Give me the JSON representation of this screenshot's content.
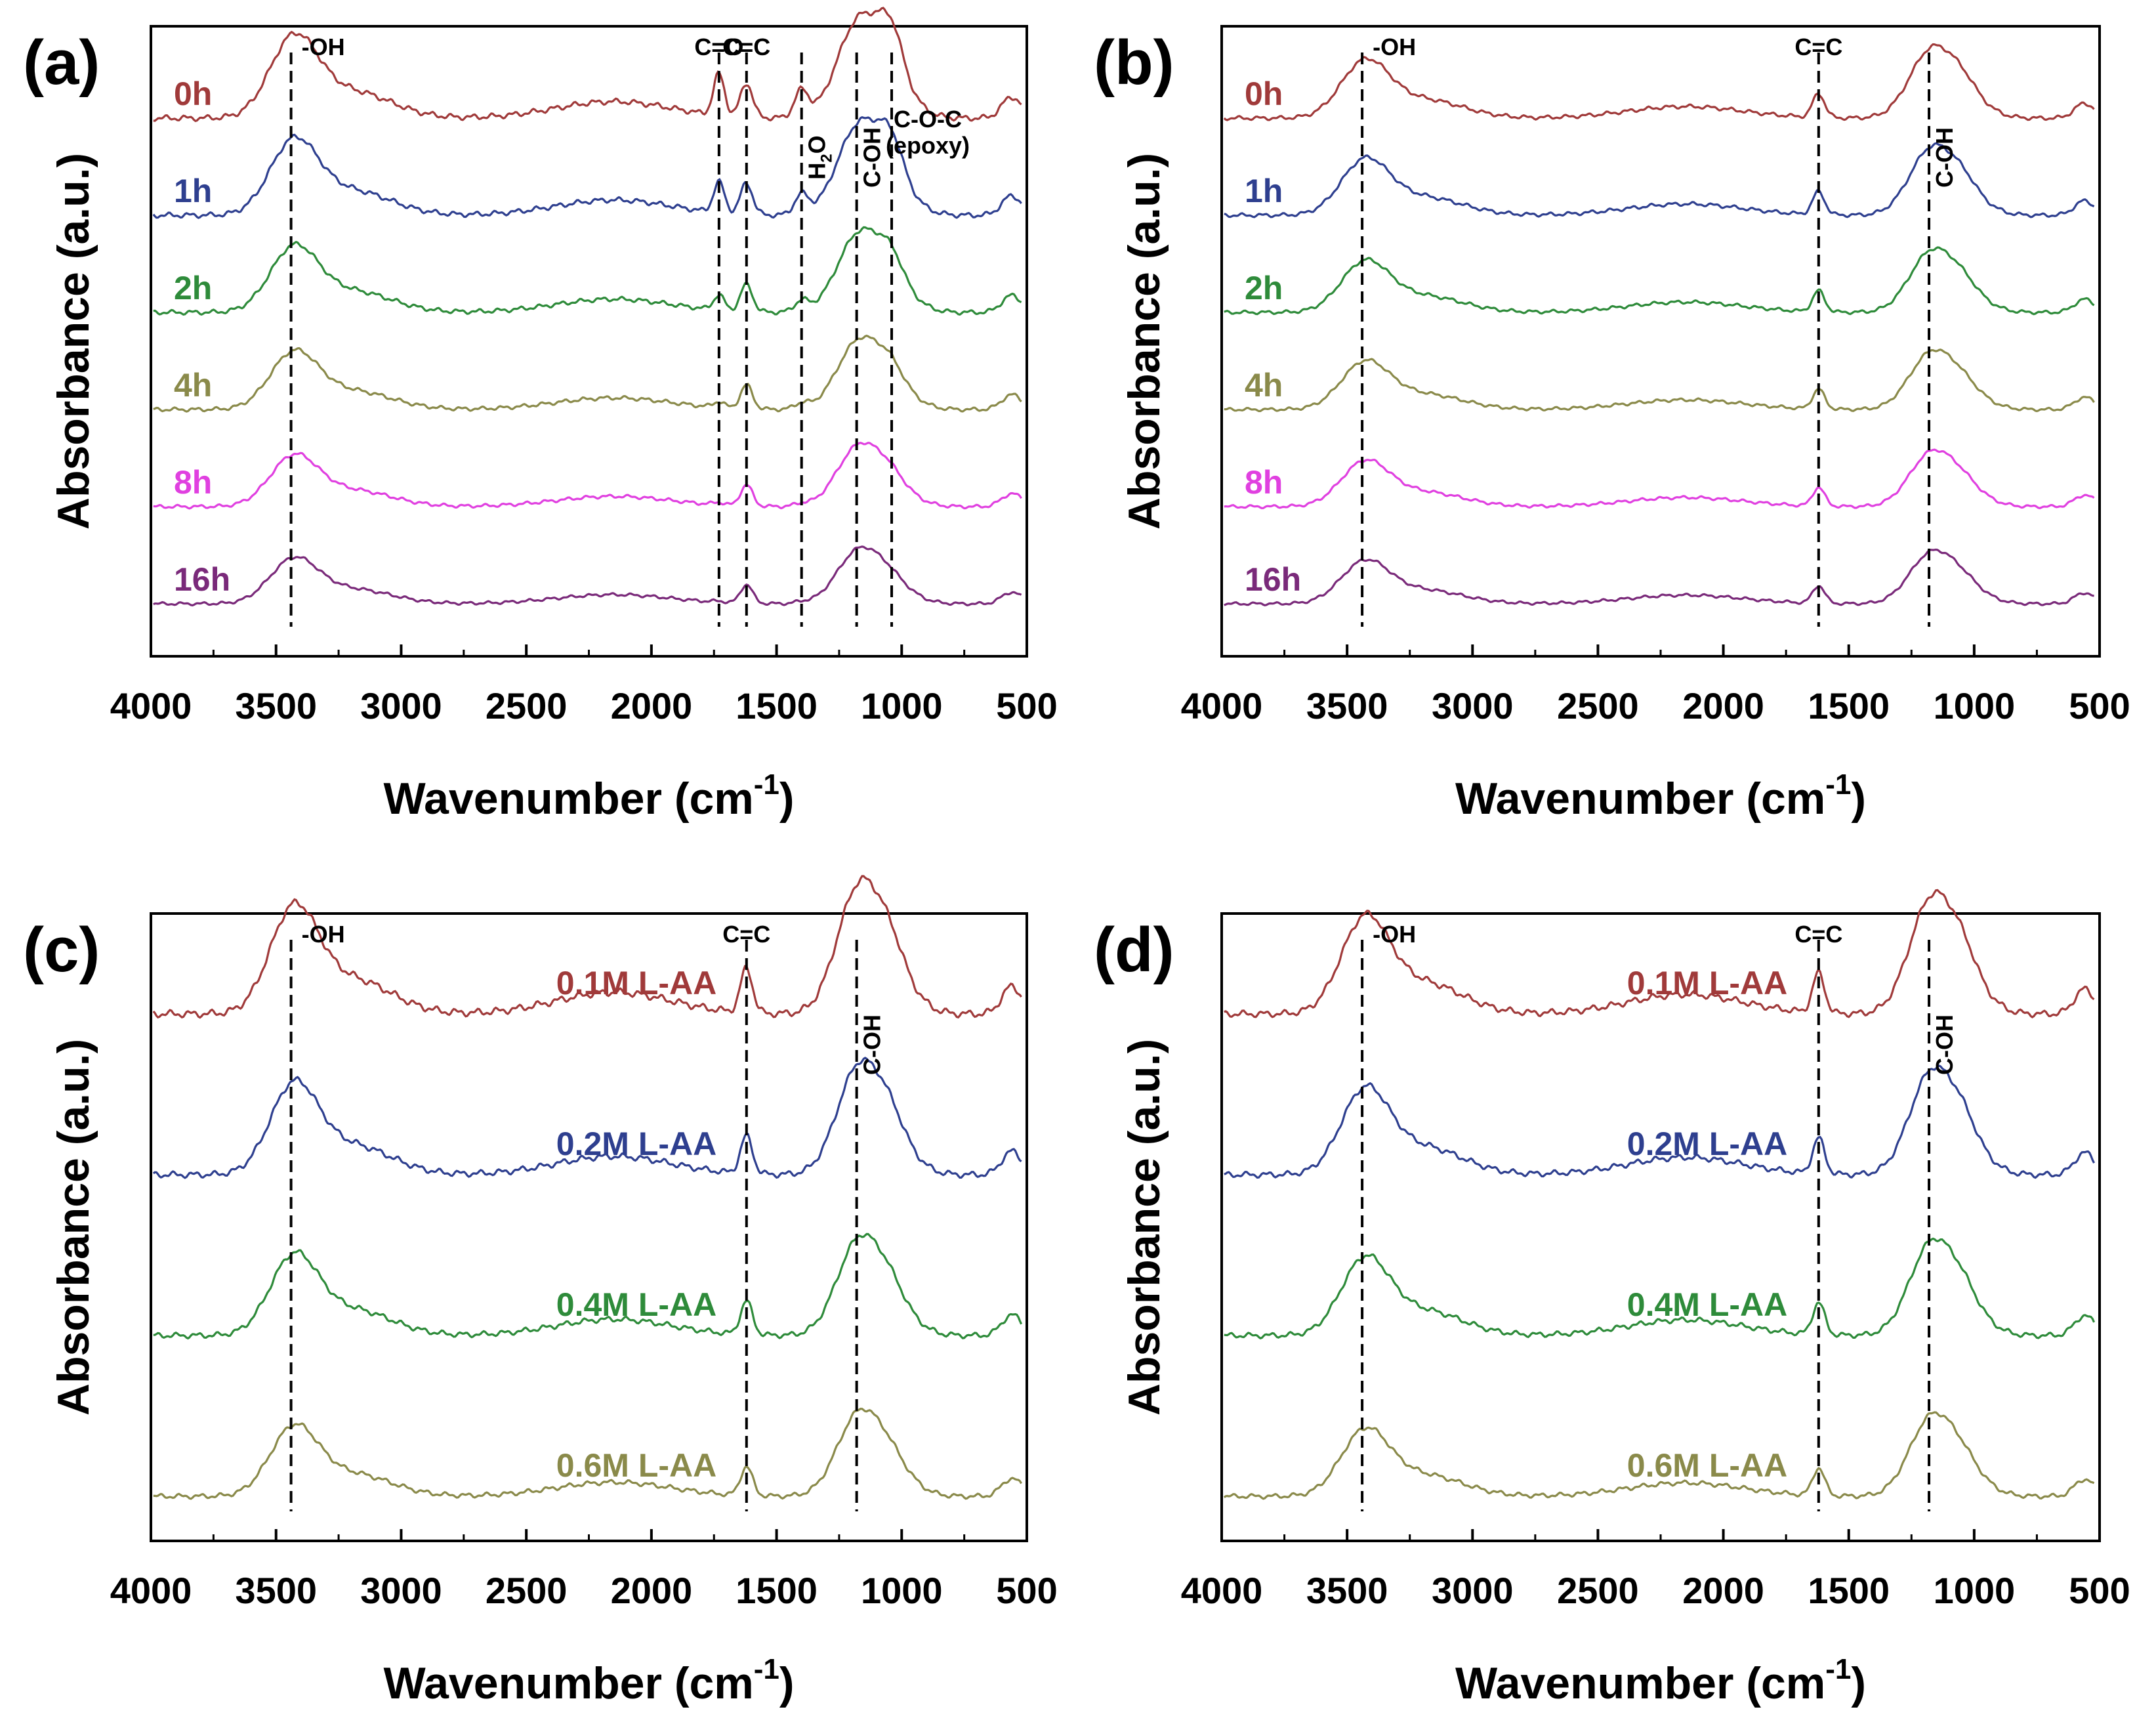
{
  "chart_data": [
    {
      "type": "line",
      "panel_label": "(a)",
      "xlabel": "Wavenumber",
      "xlabel_unit_base": "cm",
      "xlabel_unit_exp": "-1",
      "ylabel": "Absorbance (a.u.)",
      "xlim": [
        4000,
        500
      ],
      "x_ticks": [
        4000,
        3500,
        3000,
        2500,
        2000,
        1500,
        1000,
        500
      ],
      "y_ticks_shown": false,
      "series": [
        {
          "name": "0h",
          "color": "#a03a3a",
          "offset": 5,
          "scale": 1.0,
          "co": 1.0,
          "epoxy": 1.0,
          "h2o": 1.0
        },
        {
          "name": "1h",
          "color": "#2e3f8f",
          "offset": 4,
          "scale": 0.92,
          "co": 0.8,
          "epoxy": 0.85,
          "h2o": 0.8
        },
        {
          "name": "2h",
          "color": "#2e8b3a",
          "offset": 3,
          "scale": 0.8,
          "co": 0.45,
          "epoxy": 0.6,
          "h2o": 0.5
        },
        {
          "name": "4h",
          "color": "#8a8a4a",
          "offset": 2,
          "scale": 0.7,
          "co": 0.2,
          "epoxy": 0.4,
          "h2o": 0.3
        },
        {
          "name": "8h",
          "color": "#e040e0",
          "offset": 1,
          "scale": 0.62,
          "co": 0.1,
          "epoxy": 0.2,
          "h2o": 0.15
        },
        {
          "name": "16h",
          "color": "#7a2a7a",
          "offset": 0,
          "scale": 0.55,
          "co": 0.05,
          "epoxy": 0.1,
          "h2o": 0.1
        }
      ],
      "reference_lines": [
        {
          "x": 3440,
          "label": "-OH",
          "orient": "h"
        },
        {
          "x": 1730,
          "label": "C=O",
          "orient": "h"
        },
        {
          "x": 1620,
          "label": "C=C",
          "orient": "h"
        },
        {
          "x": 1400,
          "label": "H2O",
          "orient": "v"
        },
        {
          "x": 1180,
          "label": "C-OH",
          "orient": "v"
        },
        {
          "x": 1040,
          "label": "C-O-C",
          "label2": "(epoxy)",
          "orient": "h"
        }
      ]
    },
    {
      "type": "line",
      "panel_label": "(b)",
      "xlabel": "Wavenumber",
      "xlabel_unit_base": "cm",
      "xlabel_unit_exp": "-1",
      "ylabel": "Absorbance (a.u.)",
      "xlim": [
        4000,
        500
      ],
      "x_ticks": [
        4000,
        3500,
        3000,
        2500,
        2000,
        1500,
        1000,
        500
      ],
      "y_ticks_shown": false,
      "series": [
        {
          "name": "0h",
          "color": "#a03a3a",
          "offset": 5,
          "scale": 0.7,
          "co": 0,
          "epoxy": 0.2,
          "h2o": 0
        },
        {
          "name": "1h",
          "color": "#2e3f8f",
          "offset": 4,
          "scale": 0.68,
          "co": 0,
          "epoxy": 0.2,
          "h2o": 0
        },
        {
          "name": "2h",
          "color": "#2e8b3a",
          "offset": 3,
          "scale": 0.62,
          "co": 0,
          "epoxy": 0.15,
          "h2o": 0
        },
        {
          "name": "4h",
          "color": "#8a8a4a",
          "offset": 2,
          "scale": 0.58,
          "co": 0,
          "epoxy": 0.1,
          "h2o": 0
        },
        {
          "name": "8h",
          "color": "#e040e0",
          "offset": 1,
          "scale": 0.55,
          "co": 0,
          "epoxy": 0.1,
          "h2o": 0
        },
        {
          "name": "16h",
          "color": "#7a2a7a",
          "offset": 0,
          "scale": 0.52,
          "co": 0,
          "epoxy": 0.1,
          "h2o": 0
        }
      ],
      "reference_lines": [
        {
          "x": 3440,
          "label": "-OH",
          "orient": "h"
        },
        {
          "x": 1620,
          "label": "C=C",
          "orient": "h"
        },
        {
          "x": 1180,
          "label": "C-OH",
          "orient": "v"
        }
      ]
    },
    {
      "type": "line",
      "panel_label": "(c)",
      "xlabel": "Wavenumber",
      "xlabel_unit_base": "cm",
      "xlabel_unit_exp": "-1",
      "ylabel": "Absorbance (a.u.)",
      "xlim": [
        4000,
        500
      ],
      "x_ticks": [
        4000,
        3500,
        3000,
        2500,
        2000,
        1500,
        1000,
        500
      ],
      "y_ticks_shown": false,
      "series": [
        {
          "name": "0.1M L-AA",
          "color": "#a03a3a",
          "offset": 3,
          "scale": 1.0,
          "co": 0,
          "epoxy": 0.2,
          "h2o": 0
        },
        {
          "name": "0.2M L-AA",
          "color": "#2e3f8f",
          "offset": 2,
          "scale": 0.85,
          "co": 0,
          "epoxy": 0.2,
          "h2o": 0
        },
        {
          "name": "0.4M L-AA",
          "color": "#2e8b3a",
          "offset": 1,
          "scale": 0.75,
          "co": 0,
          "epoxy": 0.15,
          "h2o": 0
        },
        {
          "name": "0.6M L-AA",
          "color": "#8a8a4a",
          "offset": 0,
          "scale": 0.65,
          "co": 0,
          "epoxy": 0.1,
          "h2o": 0
        }
      ],
      "reference_lines": [
        {
          "x": 3440,
          "label": "-OH",
          "orient": "h"
        },
        {
          "x": 1620,
          "label": "C=C",
          "orient": "h"
        },
        {
          "x": 1180,
          "label": "C-OH",
          "orient": "v"
        }
      ]
    },
    {
      "type": "line",
      "panel_label": "(d)",
      "xlabel": "Wavenumber",
      "xlabel_unit_base": "cm",
      "xlabel_unit_exp": "-1",
      "ylabel": "Absorbance (a.u.)",
      "xlim": [
        4000,
        500
      ],
      "x_ticks": [
        4000,
        3500,
        3000,
        2500,
        2000,
        1500,
        1000,
        500
      ],
      "y_ticks_shown": false,
      "series": [
        {
          "name": "0.1M L-AA",
          "color": "#a03a3a",
          "offset": 3,
          "scale": 0.9,
          "co": 0,
          "epoxy": 0.2,
          "h2o": 0
        },
        {
          "name": "0.2M L-AA",
          "color": "#2e3f8f",
          "offset": 2,
          "scale": 0.8,
          "co": 0,
          "epoxy": 0.2,
          "h2o": 0
        },
        {
          "name": "0.4M L-AA",
          "color": "#2e8b3a",
          "offset": 1,
          "scale": 0.72,
          "co": 0,
          "epoxy": 0.15,
          "h2o": 0
        },
        {
          "name": "0.6M L-AA",
          "color": "#8a8a4a",
          "offset": 0,
          "scale": 0.62,
          "co": 0,
          "epoxy": 0.1,
          "h2o": 0
        }
      ],
      "reference_lines": [
        {
          "x": 3440,
          "label": "-OH",
          "orient": "h"
        },
        {
          "x": 1620,
          "label": "C=C",
          "orient": "h"
        },
        {
          "x": 1180,
          "label": "C-OH",
          "orient": "v"
        }
      ]
    }
  ]
}
